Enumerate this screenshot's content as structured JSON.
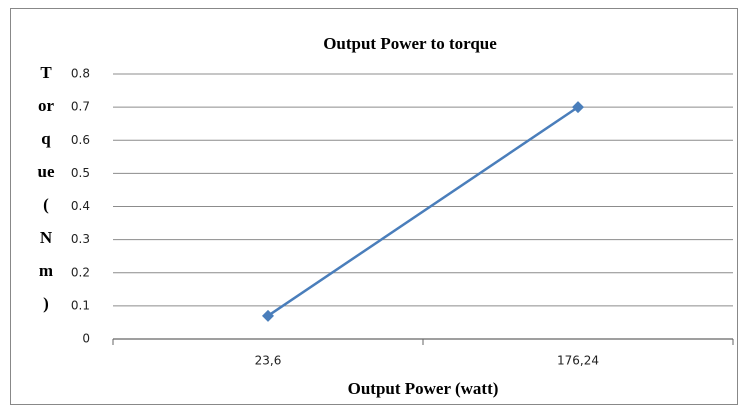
{
  "chart_data": {
    "type": "line",
    "title": "Output Power to torque",
    "xlabel": "Output Power (watt)",
    "ylabel_lines": [
      "T",
      "or",
      "q",
      "ue",
      "(",
      "N",
      "m",
      ")"
    ],
    "categories": [
      "23,6",
      "176,24"
    ],
    "values": [
      0.07,
      0.7
    ],
    "color": "#4a7ebb",
    "ylim": [
      0,
      0.8
    ],
    "yticks": [
      0,
      0.1,
      0.2,
      0.3,
      0.4,
      0.5,
      0.6,
      0.7,
      0.8
    ],
    "grid": true
  }
}
